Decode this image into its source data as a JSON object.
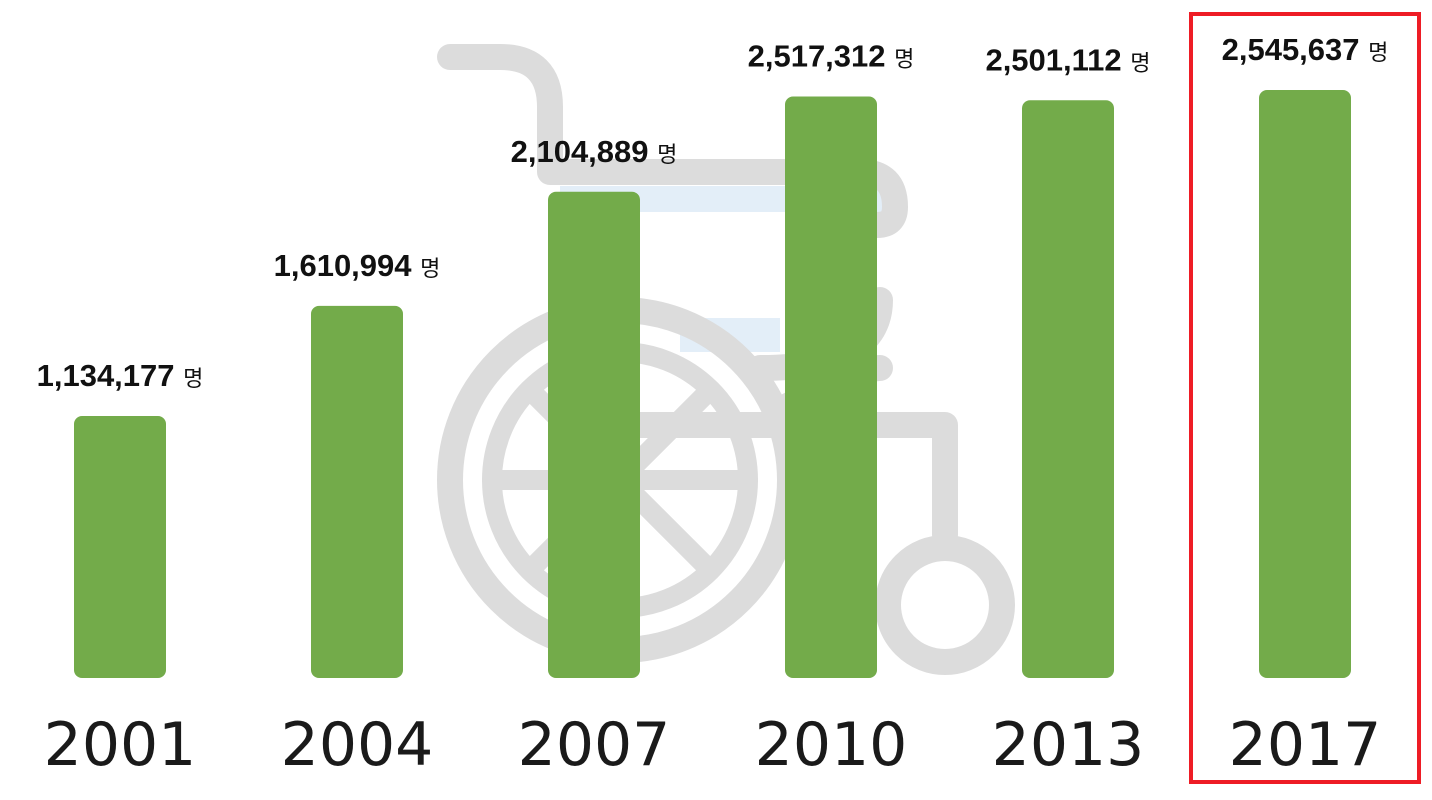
{
  "chart_data": {
    "type": "bar",
    "categories": [
      "2001",
      "2004",
      "2007",
      "2010",
      "2013",
      "2017"
    ],
    "values": [
      1134177,
      1610994,
      2104889,
      2517312,
      2501112,
      2545637
    ],
    "value_labels": [
      "1,134,177",
      "1,610,994",
      "2,104,889",
      "2,517,312",
      "2,501,112",
      "2,545,637"
    ],
    "unit": "명",
    "highlighted_category": "2017",
    "bar_color": "#73ab4a",
    "highlight_color": "#ee1c25",
    "background_icon": "wheelchair-icon",
    "icon_color": "#dcdcdc"
  }
}
